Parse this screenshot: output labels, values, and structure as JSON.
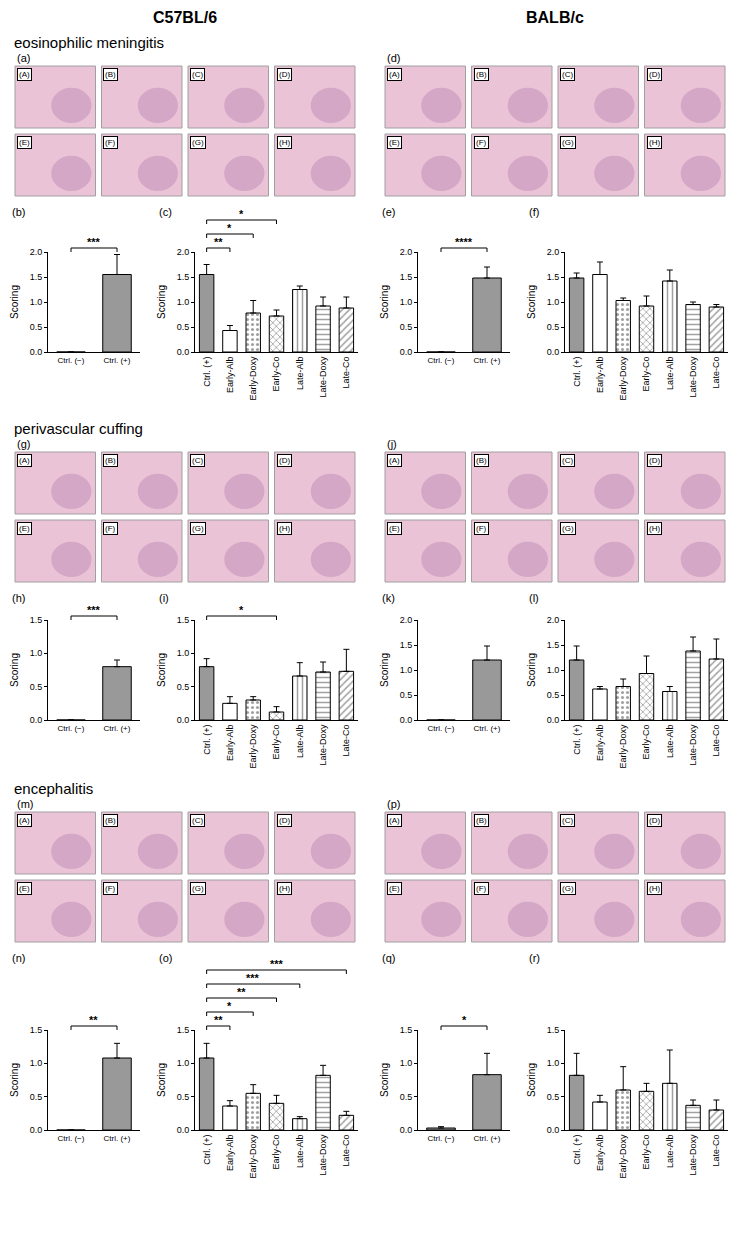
{
  "columns": [
    "C57BL/6",
    "BALB/c"
  ],
  "sections": [
    {
      "title": "eosinophilic meningitis",
      "image_panels": [
        {
          "panel": "(a)",
          "labels": [
            "(A)",
            "(B)",
            "(C)",
            "(D)",
            "(E)",
            "(F)",
            "(G)",
            "(H)"
          ]
        },
        {
          "panel": "(d)",
          "labels": [
            "(A)",
            "(B)",
            "(C)",
            "(D)",
            "(E)",
            "(F)",
            "(G)",
            "(H)"
          ]
        }
      ]
    },
    {
      "title": "perivascular cuffing",
      "image_panels": [
        {
          "panel": "(g)",
          "labels": [
            "(A)",
            "(B)",
            "(C)",
            "(D)",
            "(E)",
            "(F)",
            "(G)",
            "(H)"
          ]
        },
        {
          "panel": "(j)",
          "labels": [
            "(A)",
            "(B)",
            "(C)",
            "(D)",
            "(E)",
            "(F)",
            "(G)",
            "(H)"
          ]
        }
      ]
    },
    {
      "title": "encephalitis",
      "image_panels": [
        {
          "panel": "(m)",
          "labels": [
            "(A)",
            "(B)",
            "(C)",
            "(D)",
            "(E)",
            "(F)",
            "(G)",
            "(H)"
          ]
        },
        {
          "panel": "(p)",
          "labels": [
            "(A)",
            "(B)",
            "(C)",
            "(D)",
            "(E)",
            "(F)",
            "(G)",
            "(H)"
          ]
        }
      ]
    }
  ],
  "chart_data": [
    {
      "panel": "(b)",
      "type": "bar",
      "ylabel": "Scoring",
      "categories": [
        "Ctrl. (−)",
        "Ctrl. (+)"
      ],
      "values": [
        0,
        1.55
      ],
      "errors": [
        0,
        0.4
      ],
      "colors": [
        "#999999",
        "#999999"
      ],
      "ylim": [
        0,
        2
      ],
      "yticks": [
        {
          "value": 0,
          "label": "0.0"
        },
        0.5,
        {
          "value": 1,
          "label": "1.0"
        },
        1.5,
        {
          "value": 2,
          "label": "2.0"
        }
      ],
      "annotations": [
        {
          "from": "Ctrl. (−)",
          "to": "Ctrl. (+)",
          "text": "***"
        }
      ]
    },
    {
      "panel": "(c)",
      "type": "bar",
      "ylabel": "Scoring",
      "categories": [
        "Ctrl. (+)",
        "Early-Alb",
        "Early-Doxy",
        "Early-Co",
        "Late-Alb",
        "Late-Doxy",
        "Late-Co"
      ],
      "values": [
        1.55,
        0.43,
        0.78,
        0.72,
        1.25,
        0.92,
        0.88
      ],
      "errors": [
        0.2,
        0.1,
        0.25,
        0.12,
        0.07,
        0.18,
        0.22
      ],
      "colors": [
        "#999999",
        "#ffffff",
        "#ffffff",
        "#ffffff",
        "#ffffff",
        "#ffffff",
        "#ffffff"
      ],
      "ylim": [
        0,
        2
      ],
      "yticks": [
        {
          "value": 0,
          "label": "0.0"
        },
        0.5,
        {
          "value": 1,
          "label": "1.0"
        },
        1.5,
        {
          "value": 2,
          "label": "2.0"
        }
      ],
      "annotations": [
        {
          "from": "Ctrl. (+)",
          "to": "Early-Alb",
          "text": "**"
        },
        {
          "from": "Ctrl. (+)",
          "to": "Early-Doxy",
          "text": "*"
        },
        {
          "from": "Ctrl. (+)",
          "to": "Early-Co",
          "text": "*"
        }
      ]
    },
    {
      "panel": "(e)",
      "type": "bar",
      "ylabel": "Scoring",
      "categories": [
        "Ctrl. (−)",
        "Ctrl. (+)"
      ],
      "values": [
        0,
        1.48
      ],
      "errors": [
        0,
        0.22
      ],
      "colors": [
        "#999999",
        "#999999"
      ],
      "ylim": [
        0,
        2
      ],
      "yticks": [
        {
          "value": 0,
          "label": "0.0"
        },
        0.5,
        {
          "value": 1,
          "label": "1.0"
        },
        1.5,
        {
          "value": 2,
          "label": "2.0"
        }
      ],
      "annotations": [
        {
          "from": "Ctrl. (−)",
          "to": "Ctrl. (+)",
          "text": "****"
        }
      ]
    },
    {
      "panel": "(f)",
      "type": "bar",
      "ylabel": "Scoring",
      "categories": [
        "Ctrl. (+)",
        "Early-Alb",
        "Early-Doxy",
        "Early-Co",
        "Late-Alb",
        "Late-Doxy",
        "Late-Co"
      ],
      "values": [
        1.48,
        1.55,
        1.03,
        0.92,
        1.42,
        0.95,
        0.9
      ],
      "errors": [
        0.1,
        0.25,
        0.05,
        0.2,
        0.22,
        0.05,
        0.05
      ],
      "colors": [
        "#999999",
        "#ffffff",
        "#ffffff",
        "#ffffff",
        "#ffffff",
        "#ffffff",
        "#ffffff"
      ],
      "ylim": [
        0,
        2
      ],
      "yticks": [
        {
          "value": 0,
          "label": "0.0"
        },
        0.5,
        {
          "value": 1,
          "label": "1.0"
        },
        1.5,
        {
          "value": 2,
          "label": "2.0"
        }
      ]
    },
    {
      "panel": "(h)",
      "type": "bar",
      "ylabel": "Scoring",
      "categories": [
        "Ctrl. (−)",
        "Ctrl. (+)"
      ],
      "values": [
        0,
        0.8
      ],
      "errors": [
        0,
        0.1
      ],
      "colors": [
        "#999999",
        "#999999"
      ],
      "ylim": [
        0,
        1.5
      ],
      "yticks": [
        {
          "value": 0,
          "label": "0.0"
        },
        0.5,
        {
          "value": 1,
          "label": "1.0"
        },
        1.5
      ],
      "annotations": [
        {
          "from": "Ctrl. (−)",
          "to": "Ctrl. (+)",
          "text": "***"
        }
      ]
    },
    {
      "panel": "(i)",
      "type": "bar",
      "ylabel": "Scoring",
      "categories": [
        "Ctrl. (+)",
        "Early-Alb",
        "Early-Doxy",
        "Early-Co",
        "Late-Alb",
        "Late-Doxy",
        "Late-Co"
      ],
      "values": [
        0.8,
        0.25,
        0.3,
        0.12,
        0.66,
        0.72,
        0.73
      ],
      "errors": [
        0.12,
        0.1,
        0.05,
        0.08,
        0.2,
        0.15,
        0.33
      ],
      "colors": [
        "#999999",
        "#ffffff",
        "#ffffff",
        "#ffffff",
        "#ffffff",
        "#ffffff",
        "#ffffff"
      ],
      "ylim": [
        0,
        1.5
      ],
      "yticks": [
        {
          "value": 0,
          "label": "0.0"
        },
        0.5,
        {
          "value": 1,
          "label": "1.0"
        },
        1.5
      ],
      "annotations": [
        {
          "from": "Ctrl. (+)",
          "to": "Early-Co",
          "text": "*"
        }
      ]
    },
    {
      "panel": "(k)",
      "type": "bar",
      "ylabel": "Scoring",
      "categories": [
        "Ctrl. (−)",
        "Ctrl. (+)"
      ],
      "values": [
        0,
        1.2
      ],
      "errors": [
        0,
        0.28
      ],
      "colors": [
        "#999999",
        "#999999"
      ],
      "ylim": [
        0,
        2
      ],
      "yticks": [
        {
          "value": 0,
          "label": "0.0"
        },
        0.5,
        {
          "value": 1,
          "label": "1.0"
        },
        1.5,
        {
          "value": 2,
          "label": "2.0"
        }
      ]
    },
    {
      "panel": "(l)",
      "type": "bar",
      "ylabel": "Scoring",
      "categories": [
        "Ctrl. (+)",
        "Early-Alb",
        "Early-Doxy",
        "Early-Co",
        "Late-Alb",
        "Late-Doxy",
        "Late-Co"
      ],
      "values": [
        1.2,
        0.62,
        0.67,
        0.93,
        0.57,
        1.38,
        1.22
      ],
      "errors": [
        0.28,
        0.05,
        0.15,
        0.35,
        0.1,
        0.28,
        0.4
      ],
      "colors": [
        "#999999",
        "#ffffff",
        "#ffffff",
        "#ffffff",
        "#ffffff",
        "#ffffff",
        "#ffffff"
      ],
      "ylim": [
        0,
        2
      ],
      "yticks": [
        {
          "value": 0,
          "label": "0.0"
        },
        0.5,
        {
          "value": 1,
          "label": "1.0"
        },
        1.5,
        {
          "value": 2,
          "label": "2.0"
        }
      ]
    },
    {
      "panel": "(n)",
      "type": "bar",
      "ylabel": "Scoring",
      "categories": [
        "Ctrl. (−)",
        "Ctrl. (+)"
      ],
      "values": [
        0,
        1.08
      ],
      "errors": [
        0,
        0.22
      ],
      "colors": [
        "#999999",
        "#999999"
      ],
      "ylim": [
        0,
        1.5
      ],
      "yticks": [
        {
          "value": 0,
          "label": "0.0"
        },
        0.5,
        {
          "value": 1,
          "label": "1.0"
        },
        1.5
      ],
      "annotations": [
        {
          "from": "Ctrl. (−)",
          "to": "Ctrl. (+)",
          "text": "**"
        }
      ]
    },
    {
      "panel": "(o)",
      "type": "bar",
      "ylabel": "Scoring",
      "categories": [
        "Ctrl. (+)",
        "Early-Alb",
        "Early-Doxy",
        "Early-Co",
        "Late-Alb",
        "Late-Doxy",
        "Late-Co"
      ],
      "values": [
        1.08,
        0.36,
        0.55,
        0.4,
        0.17,
        0.82,
        0.22
      ],
      "errors": [
        0.22,
        0.08,
        0.13,
        0.12,
        0.03,
        0.15,
        0.06
      ],
      "colors": [
        "#999999",
        "#ffffff",
        "#ffffff",
        "#ffffff",
        "#ffffff",
        "#ffffff",
        "#ffffff"
      ],
      "ylim": [
        0,
        1.5
      ],
      "yticks": [
        {
          "value": 0,
          "label": "0.0"
        },
        0.5,
        {
          "value": 1,
          "label": "1.0"
        },
        1.5
      ],
      "annotations": [
        {
          "from": "Ctrl. (+)",
          "to": "Early-Alb",
          "text": "**"
        },
        {
          "from": "Ctrl. (+)",
          "to": "Early-Doxy",
          "text": "*"
        },
        {
          "from": "Ctrl. (+)",
          "to": "Early-Co",
          "text": "**"
        },
        {
          "from": "Ctrl. (+)",
          "to": "Late-Alb",
          "text": "***"
        },
        {
          "from": "Ctrl. (+)",
          "to": "Late-Co",
          "text": "***"
        }
      ]
    },
    {
      "panel": "(q)",
      "type": "bar",
      "ylabel": "Scoring",
      "categories": [
        "Ctrl. (−)",
        "Ctrl. (+)"
      ],
      "values": [
        0.03,
        0.83
      ],
      "errors": [
        0.02,
        0.32
      ],
      "colors": [
        "#999999",
        "#999999"
      ],
      "ylim": [
        0,
        1.5
      ],
      "yticks": [
        {
          "value": 0,
          "label": "0.0"
        },
        0.5,
        {
          "value": 1,
          "label": "1.0"
        },
        1.5
      ],
      "annotations": [
        {
          "from": "Ctrl. (−)",
          "to": "Ctrl. (+)",
          "text": "*"
        }
      ]
    },
    {
      "panel": "(r)",
      "type": "bar",
      "ylabel": "Scoring",
      "categories": [
        "Ctrl. (+)",
        "Early-Alb",
        "Early-Doxy",
        "Early-Co",
        "Late-Alb",
        "Late-Doxy",
        "Late-Co"
      ],
      "values": [
        0.82,
        0.42,
        0.6,
        0.58,
        0.7,
        0.37,
        0.3
      ],
      "errors": [
        0.33,
        0.1,
        0.35,
        0.12,
        0.5,
        0.08,
        0.15
      ],
      "colors": [
        "#999999",
        "#ffffff",
        "#ffffff",
        "#ffffff",
        "#ffffff",
        "#ffffff",
        "#ffffff"
      ],
      "ylim": [
        0,
        1.5
      ],
      "yticks": [
        {
          "value": 0,
          "label": "0.0"
        },
        0.5,
        {
          "value": 1,
          "label": "1.0"
        },
        1.5
      ]
    }
  ]
}
